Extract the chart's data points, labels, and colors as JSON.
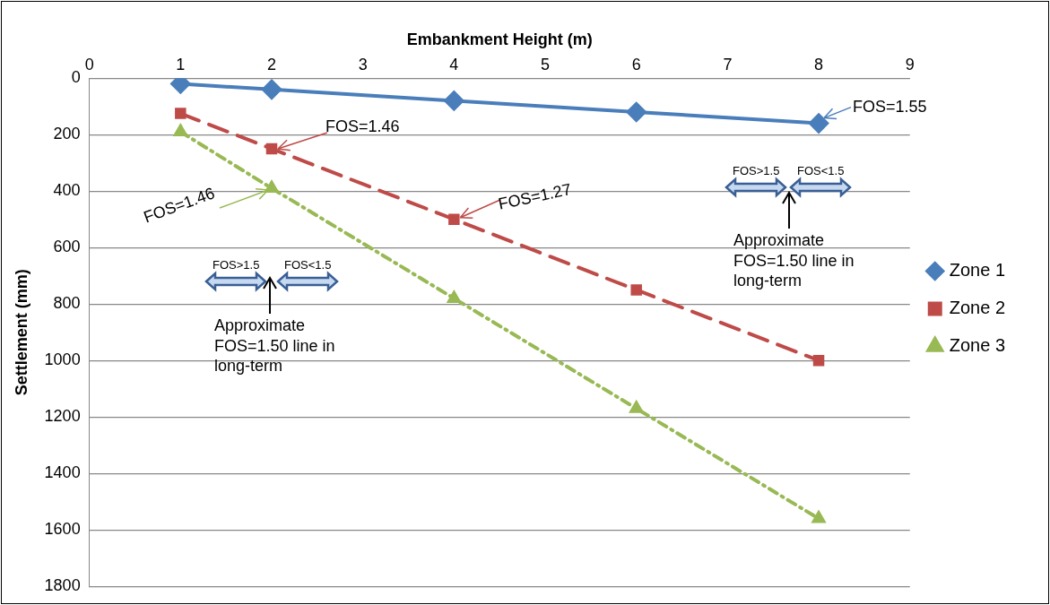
{
  "chart_data": {
    "type": "line",
    "xlabel": "Embankment Height (m)",
    "ylabel": "Settlement (mm)",
    "xlim": [
      0,
      9
    ],
    "xticks": [
      0,
      1,
      2,
      3,
      4,
      5,
      6,
      7,
      8,
      9
    ],
    "ylim": [
      1800,
      0
    ],
    "yticks": [
      0,
      200,
      400,
      600,
      800,
      1000,
      1200,
      1400,
      1600,
      1800
    ],
    "grid": "y",
    "legend": "right",
    "series": [
      {
        "name": "Zone 1",
        "color": "#4a7ebb",
        "x": [
          1,
          2,
          4,
          6,
          8
        ],
        "values": [
          20,
          40,
          80,
          120,
          160
        ],
        "marker": "diamond",
        "line_style": "solid"
      },
      {
        "name": "Zone 2",
        "color": "#be4b48",
        "x": [
          1,
          2,
          4,
          6,
          8
        ],
        "values": [
          125,
          250,
          500,
          750,
          1000
        ],
        "marker": "square",
        "line_style": "dashed"
      },
      {
        "name": "Zone 3",
        "color": "#98b954",
        "x": [
          1,
          2,
          4,
          6,
          8
        ],
        "values": [
          190,
          390,
          780,
          1170,
          1560
        ],
        "marker": "triangle",
        "line_style": "dotted"
      }
    ],
    "annotations": [
      {
        "text": "FOS=1.55",
        "x": 8,
        "y": 160
      },
      {
        "text": "FOS=1.46",
        "x": 2,
        "y": 250
      },
      {
        "text": "FOS=1.27",
        "x": 4,
        "y": 500
      },
      {
        "text": "FOS=1.46",
        "x": 2,
        "y": 390
      },
      "FOS>1.5",
      "FOS<1.5",
      "Approximate FOS=1.50 line in long-term",
      "FOS>1.5",
      "FOS<1.5",
      "Approximate FOS=1.50 line in long-term"
    ]
  }
}
